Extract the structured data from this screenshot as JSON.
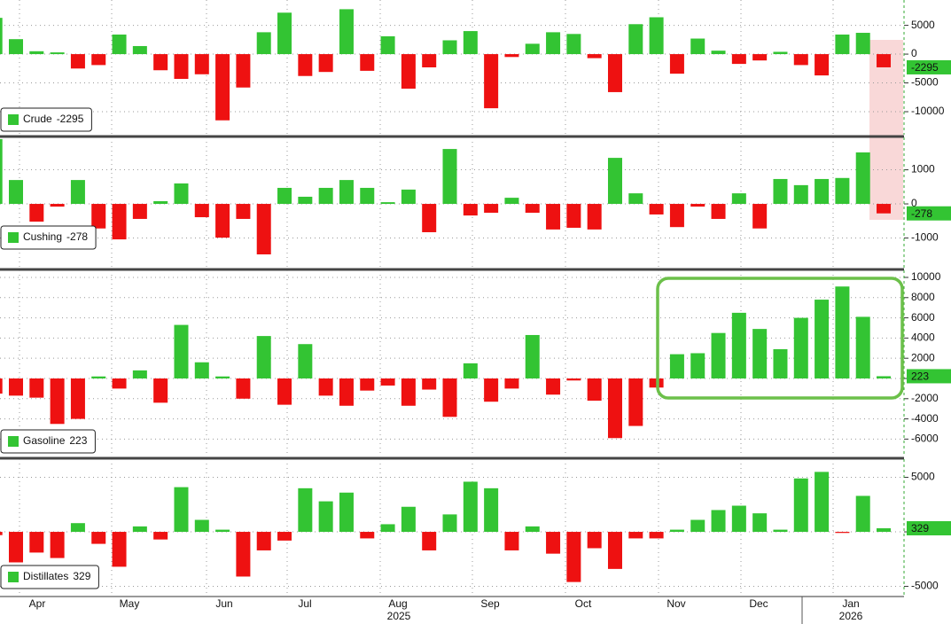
{
  "chart_data": [
    {
      "type": "bar",
      "series_name": "Crude",
      "positive_color": "#33c433",
      "negative_color": "#ee1111",
      "values": [
        6300,
        2600,
        500,
        300,
        -2500,
        -1900,
        3400,
        1400,
        -2800,
        -4300,
        -3500,
        -11500,
        -5800,
        3800,
        7200,
        -3800,
        -3100,
        7800,
        -2900,
        3100,
        -6000,
        -2300,
        2400,
        4000,
        -9400,
        -500,
        1800,
        3800,
        3500,
        -700,
        -6600,
        5200,
        6400,
        -3400,
        2700,
        600,
        -1700,
        -1100,
        400,
        -1900,
        -3700,
        3400,
        3700,
        -2295
      ],
      "ylim": [
        -14000,
        9400
      ],
      "yticks": [
        5000,
        0,
        -5000,
        -10000
      ],
      "grid": true
    },
    {
      "type": "bar",
      "series_name": "Cushing",
      "positive_color": "#33c433",
      "negative_color": "#ee1111",
      "values": [
        1900,
        700,
        -520,
        -80,
        700,
        -720,
        -1040,
        -440,
        80,
        600,
        -390,
        -990,
        -440,
        -1480,
        470,
        210,
        470,
        700,
        470,
        50,
        420,
        -830,
        1610,
        -340,
        -260,
        180,
        -260,
        -750,
        -700,
        -750,
        1350,
        310,
        -310,
        -680,
        -80,
        -440,
        310,
        -720,
        730,
        550,
        730,
        760,
        1510,
        -278
      ],
      "ylim": [
        -1870,
        1950
      ],
      "yticks": [
        1000,
        0,
        -1000
      ],
      "grid": true
    },
    {
      "type": "bar",
      "series_name": "Gasoline",
      "positive_color": "#33c433",
      "negative_color": "#ee1111",
      "values": [
        -1500,
        -1700,
        -1900,
        -4500,
        -4000,
        200,
        -1000,
        800,
        -2400,
        5300,
        1600,
        200,
        -2000,
        4200,
        -2600,
        3400,
        -1700,
        -2700,
        -1200,
        -700,
        -2700,
        -1100,
        -3800,
        1500,
        -2300,
        -1000,
        4300,
        -1600,
        -200,
        -2200,
        -5900,
        -4700,
        -900,
        2400,
        2500,
        4500,
        6500,
        4900,
        2900,
        6000,
        7800,
        9100,
        6100,
        223
      ],
      "ylim": [
        -7720,
        10700
      ],
      "yticks": [
        10000,
        8000,
        6000,
        4000,
        2000,
        0,
        -2000,
        -4000,
        -6000
      ],
      "grid": true
    },
    {
      "type": "bar",
      "series_name": "Distillates",
      "positive_color": "#33c433",
      "negative_color": "#ee1111",
      "values": [
        -300,
        -2800,
        -1900,
        -2400,
        800,
        -1100,
        -3200,
        500,
        -700,
        4100,
        1100,
        200,
        -4100,
        -1700,
        -800,
        4000,
        2800,
        3600,
        -600,
        700,
        2300,
        -1700,
        1600,
        4600,
        4000,
        -1700,
        500,
        -2000,
        -4600,
        -1500,
        -3400,
        -600,
        -600,
        200,
        1100,
        2000,
        2400,
        1700,
        200,
        4900,
        5500,
        -100,
        3300,
        329
      ],
      "ylim": [
        -5850,
        6670
      ],
      "yticks": [
        5000,
        0,
        -5000
      ],
      "grid": true
    }
  ],
  "x_axis": {
    "months": [
      "Apr",
      "May",
      "Jun",
      "Jul",
      "Aug",
      "Sep",
      "Oct",
      "Nov",
      "Dec",
      "Jan"
    ],
    "years": [
      "2025",
      "2026"
    ]
  }
}
